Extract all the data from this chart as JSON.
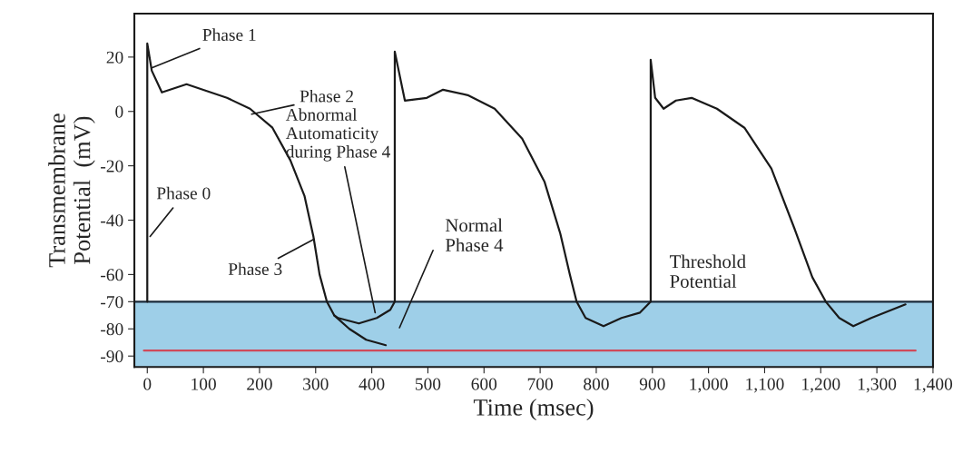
{
  "chart_data": {
    "type": "line",
    "xlabel": "Time (msec)",
    "ylabel": "Transmembrane\nPotential  (mV)",
    "xlim": [
      -23,
      1400
    ],
    "ylim": [
      -94,
      36
    ],
    "xticks": [
      0,
      100,
      200,
      300,
      400,
      500,
      600,
      700,
      800,
      900,
      {
        "value": 1000,
        "label": "1,000"
      },
      {
        "value": 1100,
        "label": "1,100"
      },
      {
        "value": 1200,
        "label": "1,200"
      },
      {
        "value": 1300,
        "label": "1,300"
      },
      {
        "value": 1400,
        "label": "1,400"
      }
    ],
    "yticks": [
      20,
      0,
      -20,
      -40,
      -60,
      -70,
      -80,
      -90
    ],
    "grid": false,
    "legend": false,
    "marker": "none",
    "line_style": "solid",
    "series": [
      {
        "color": "#1a1a1a",
        "x": [
          0,
          0,
          8,
          26,
          70,
          142,
          183,
          223,
          255,
          280,
          296,
          307,
          320,
          333,
          340,
          377,
          409,
          433,
          441,
          441,
          459,
          498,
          527,
          571,
          619,
          668,
          708,
          736,
          753,
          765,
          781,
          813,
          845,
          878,
          897,
          897,
          905,
          920,
          942,
          970,
          1015,
          1064,
          1112,
          1153,
          1185,
          1209,
          1233,
          1258,
          1290,
          1351
        ],
        "values": [
          -70,
          25,
          15,
          7,
          10,
          5,
          1,
          -6,
          -18,
          -31,
          -46,
          -60,
          -70,
          -75,
          -76,
          -78,
          -76,
          -73,
          -70,
          22,
          4,
          5,
          8,
          6,
          1,
          -10,
          -26,
          -45,
          -60,
          -70,
          -76,
          -79,
          -76,
          -74,
          -70,
          19,
          5,
          1,
          4,
          5,
          1,
          -6,
          -21,
          -43,
          -61,
          -70,
          -76,
          -79,
          -76,
          -71
        ]
      },
      {
        "color": "#1a1a1a",
        "x": [
          333,
          360,
          390,
          425
        ],
        "values": [
          -75,
          -80,
          -84,
          -86
        ]
      },
      {
        "color": "#d04a5a",
        "x": [
          -6,
          1369
        ],
        "values": [
          -88,
          -88
        ]
      }
    ],
    "bands": [
      {
        "axis": "y",
        "from": -94,
        "to": -70,
        "color": "#9ecfe8"
      }
    ],
    "ref_lines": [
      {
        "axis": "y",
        "value": -70,
        "label": "Threshold\nPotential",
        "color": "#1a2a3a"
      }
    ],
    "annotations": [
      {
        "text": "Phase 1",
        "x": 8,
        "y": 16
      },
      {
        "text": "Phase 2",
        "x": 186,
        "y": -1
      },
      {
        "text": "Phase 0",
        "x": 5,
        "y": -46
      },
      {
        "text": "Phase 3",
        "x": 297,
        "y": -47
      },
      {
        "text": "Abnormal\nAutomaticity\nduring Phase 4",
        "x": 406,
        "y": -74
      },
      "Normal\nPhase 4"
    ]
  }
}
